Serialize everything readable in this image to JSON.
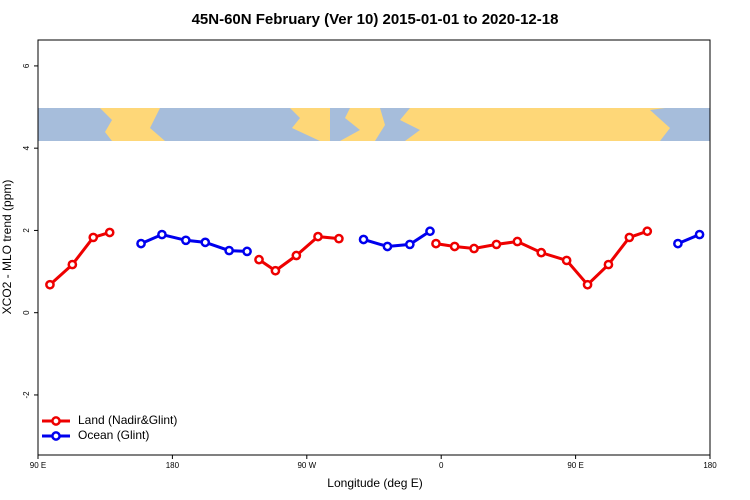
{
  "chart_data": {
    "type": "line",
    "title": "45N-60N February (Ver 10)   2015-01-01 to 2020-12-18",
    "x_label": "Longitude (deg E)",
    "y_label": "XCO2 - MLO trend (ppm)",
    "x": [
      98,
      113,
      127,
      138,
      159,
      173,
      189,
      202,
      218,
      230,
      238,
      249,
      263,
      277.5,
      291.5,
      308,
      324,
      339,
      352.5,
      356.5,
      369,
      382,
      397,
      411,
      427,
      444,
      458,
      472,
      486,
      498,
      518.5,
      533
    ],
    "series": [
      {
        "name": "Land (Nadir&Glint)",
        "color": "#ee0000",
        "values": [
          0.68,
          1.17,
          1.83,
          1.95,
          null,
          null,
          null,
          null,
          null,
          null,
          1.29,
          1.02,
          1.39,
          1.85,
          1.8,
          null,
          null,
          null,
          null,
          1.68,
          1.61,
          1.56,
          1.66,
          1.73,
          1.46,
          1.27,
          0.68,
          1.17,
          1.83,
          1.98,
          null,
          null
        ]
      },
      {
        "name": "Ocean (Glint)",
        "color": "#0000ee",
        "values": [
          null,
          null,
          null,
          null,
          1.68,
          1.9,
          1.76,
          1.71,
          1.51,
          1.49,
          null,
          null,
          null,
          null,
          null,
          1.78,
          1.61,
          1.66,
          1.98,
          null,
          null,
          null,
          null,
          null,
          null,
          null,
          null,
          null,
          null,
          null,
          1.68,
          1.9
        ]
      }
    ],
    "xlim": [
      90,
      540
    ],
    "xticks": [
      {
        "value": 90,
        "label": "90 E"
      },
      {
        "value": 180,
        "label": "180"
      },
      {
        "value": 270,
        "label": "90 W"
      },
      {
        "value": 360,
        "label": "0"
      },
      {
        "value": 450,
        "label": "90 E"
      },
      {
        "value": 540,
        "label": "180"
      }
    ],
    "ylim": [
      -3.46,
      6.63
    ],
    "yticks": [
      -2,
      0,
      2,
      4,
      6
    ],
    "legend": "bottom-left"
  }
}
